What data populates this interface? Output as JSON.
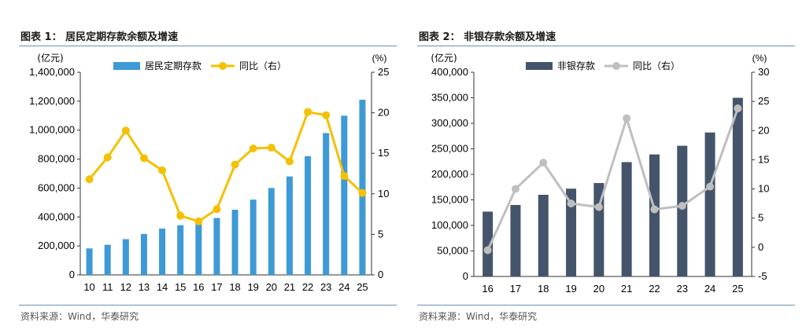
{
  "figures": [
    {
      "title": "图表 1：  居民定期存款余额及增速",
      "source": "资料来源：Wind，华泰研究",
      "left_unit": "(亿元)",
      "right_unit": "(%)",
      "left_ticks": [
        "0",
        "200,000",
        "400,000",
        "600,000",
        "800,000",
        "1,000,000",
        "1,200,000",
        "1,400,000"
      ],
      "right_ticks": [
        "0",
        "5",
        "10",
        "15",
        "20",
        "25"
      ],
      "x_ticks": [
        "10",
        "11",
        "12",
        "13",
        "14",
        "15",
        "16",
        "17",
        "18",
        "19",
        "20",
        "21",
        "22",
        "23",
        "24",
        "25"
      ],
      "legend": {
        "bar": "居民定期存款",
        "line": "同比（右）"
      }
    },
    {
      "title": "图表 2：  非银存款余额及增速",
      "source": "资料来源：Wind，华泰研究",
      "left_unit": "(亿元)",
      "right_unit": "(%)",
      "left_ticks": [
        "0",
        "50,000",
        "100,000",
        "150,000",
        "200,000",
        "250,000",
        "300,000",
        "350,000",
        "400,000"
      ],
      "right_ticks": [
        "-5",
        "0",
        "5",
        "10",
        "15",
        "20",
        "25",
        "30"
      ],
      "x_ticks": [
        "16",
        "17",
        "18",
        "19",
        "20",
        "21",
        "22",
        "23",
        "24",
        "25"
      ],
      "legend": {
        "bar": "非银存款",
        "line": "同比（右）"
      }
    }
  ],
  "chart_data": [
    {
      "type": "bar",
      "categories": [
        "10",
        "11",
        "12",
        "13",
        "14",
        "15",
        "16",
        "17",
        "18",
        "19",
        "20",
        "21",
        "22",
        "23",
        "24",
        "25"
      ],
      "series": [
        {
          "name": "居民定期存款",
          "type": "bar",
          "axis": "left",
          "color": "#3d9ad6",
          "values": [
            183000,
            208000,
            247000,
            283000,
            320000,
            343000,
            360000,
            393000,
            450000,
            520000,
            600000,
            680000,
            820000,
            980000,
            1100000,
            1210000
          ]
        },
        {
          "name": "同比（右）",
          "type": "line",
          "axis": "right",
          "color": "#f5c000",
          "values": [
            11.8,
            14.5,
            17.8,
            14.4,
            12.9,
            7.3,
            6.6,
            8.1,
            13.6,
            15.6,
            15.7,
            14.0,
            20.1,
            19.7,
            12.2,
            10.1
          ]
        }
      ],
      "ylim_left": [
        0,
        1400000
      ],
      "ylim_right": [
        0,
        25
      ],
      "legend_position": "top"
    },
    {
      "type": "bar",
      "categories": [
        "16",
        "17",
        "18",
        "19",
        "20",
        "21",
        "22",
        "23",
        "24",
        "25"
      ],
      "series": [
        {
          "name": "非银存款",
          "type": "bar",
          "axis": "left",
          "color": "#44546a",
          "values": [
            127000,
            140000,
            160000,
            172000,
            183000,
            224000,
            239000,
            256000,
            282000,
            350000
          ]
        },
        {
          "name": "同比（右）",
          "type": "line",
          "axis": "right",
          "color": "#bfbfbf",
          "values": [
            -0.5,
            10.0,
            14.5,
            7.5,
            6.9,
            22.1,
            6.5,
            7.1,
            10.4,
            23.8
          ]
        }
      ],
      "ylim_left": [
        0,
        400000
      ],
      "ylim_right": [
        -5,
        30
      ],
      "legend_position": "top"
    }
  ]
}
